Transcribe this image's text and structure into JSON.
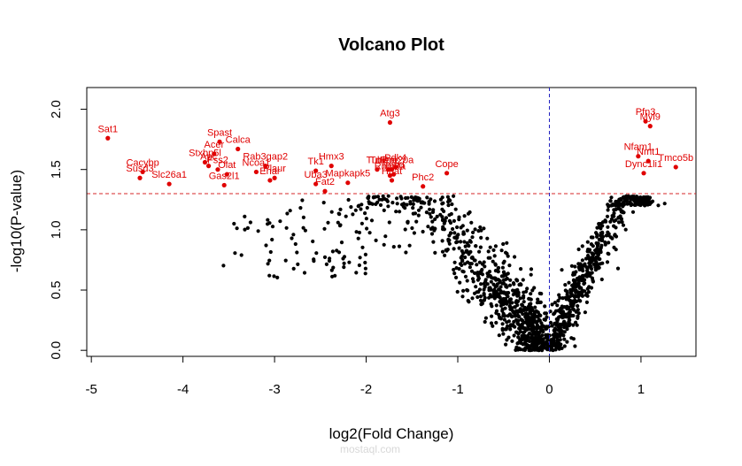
{
  "chart_data": {
    "type": "scatter",
    "title": "Volcano Plot",
    "xlabel": "log2(Fold Change)",
    "ylabel": "-log10(P-value)",
    "xlim": [
      -5.05,
      1.6
    ],
    "ylim": [
      -0.05,
      2.18
    ],
    "xticks": [
      -5,
      -4,
      -3,
      -2,
      -1,
      0,
      1
    ],
    "yticks": [
      0.0,
      0.5,
      1.0,
      1.5,
      2.0
    ],
    "xtick_labels": [
      "-5",
      "-4",
      "-3",
      "-2",
      "-1",
      "0",
      "1"
    ],
    "ytick_labels": [
      "0.0",
      "0.5",
      "1.0",
      "1.5",
      "2.0"
    ],
    "threshold_y": 1.3,
    "threshold_x": 0,
    "grid": false,
    "colors": {
      "significant": "#e00000",
      "background": "#000000",
      "hline": "#d62728",
      "vline": "#1f1fbf"
    },
    "highlighted": [
      {
        "label": "Sat1",
        "x": -4.82,
        "y": 1.76
      },
      {
        "label": "Susd3",
        "x": -4.47,
        "y": 1.43
      },
      {
        "label": "Cacybp",
        "x": -4.44,
        "y": 1.48
      },
      {
        "label": "Slc26a1",
        "x": -4.15,
        "y": 1.38
      },
      {
        "label": "Spast",
        "x": -3.6,
        "y": 1.73
      },
      {
        "label": "Calca",
        "x": -3.4,
        "y": 1.67
      },
      {
        "label": "Acer",
        "x": -3.66,
        "y": 1.63
      },
      {
        "label": "Stxbp5l",
        "x": -3.76,
        "y": 1.56
      },
      {
        "label": "Apc",
        "x": -3.72,
        "y": 1.53
      },
      {
        "label": "Fss2",
        "x": -3.62,
        "y": 1.5
      },
      {
        "label": "Olat",
        "x": -3.52,
        "y": 1.46
      },
      {
        "label": "Gas2l1",
        "x": -3.55,
        "y": 1.37
      },
      {
        "label": "Rab3gap2",
        "x": -3.1,
        "y": 1.53
      },
      {
        "label": "Ncoa1",
        "x": -3.2,
        "y": 1.48
      },
      {
        "label": "Plaur",
        "x": -3.0,
        "y": 1.43
      },
      {
        "label": "Ehar",
        "x": -3.05,
        "y": 1.41
      },
      {
        "label": "Tk1",
        "x": -2.55,
        "y": 1.49
      },
      {
        "label": "Hmx3",
        "x": -2.38,
        "y": 1.53
      },
      {
        "label": "Uba3",
        "x": -2.55,
        "y": 1.38
      },
      {
        "label": "Mapkapk5",
        "x": -2.2,
        "y": 1.39
      },
      {
        "label": "Fat2",
        "x": -2.45,
        "y": 1.32
      },
      {
        "label": "Atg3",
        "x": -1.74,
        "y": 1.89
      },
      {
        "label": "Pdk4",
        "x": -1.68,
        "y": 1.52
      },
      {
        "label": "Tmem20a",
        "x": -1.72,
        "y": 1.5
      },
      {
        "label": "Tubb",
        "x": -1.88,
        "y": 1.5
      },
      {
        "label": "Fhd",
        "x": -1.76,
        "y": 1.5
      },
      {
        "label": "Imnd",
        "x": -1.7,
        "y": 1.46
      },
      {
        "label": "Rbm8a",
        "x": -1.74,
        "y": 1.45
      },
      {
        "label": "Hhat",
        "x": -1.72,
        "y": 1.41
      },
      {
        "label": "Phc2",
        "x": -1.38,
        "y": 1.36
      },
      {
        "label": "Cope",
        "x": -1.12,
        "y": 1.47
      },
      {
        "label": "Pfn3",
        "x": 1.05,
        "y": 1.9
      },
      {
        "label": "Myl9",
        "x": 1.1,
        "y": 1.86
      },
      {
        "label": "Nfam1",
        "x": 0.97,
        "y": 1.61
      },
      {
        "label": "Tmco5b",
        "x": 1.38,
        "y": 1.52
      },
      {
        "label": "Nmt1",
        "x": 1.08,
        "y": 1.57
      },
      {
        "label": "Dync1li1",
        "x": 1.03,
        "y": 1.47
      }
    ],
    "background_points_description_note": ""
  },
  "watermark": "مستقل\nmostaql.com"
}
